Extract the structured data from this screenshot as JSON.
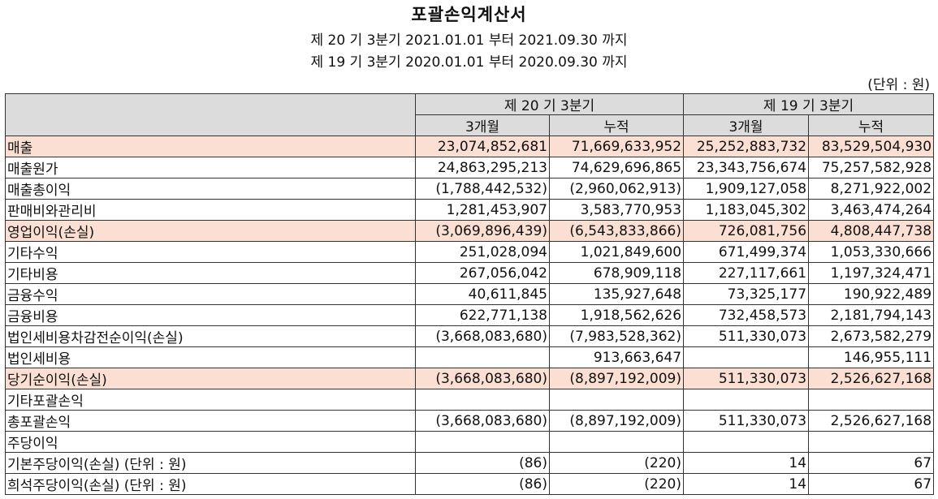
{
  "title": "포괄손익계산서",
  "period_current": "제 20 기 3분기 2021.01.01 부터 2021.09.30 까지",
  "period_prior": "제 19 기 3분기 2020.01.01 부터 2020.09.30 까지",
  "unit": "(단위 : 원)",
  "header": {
    "current_period": "제 20 기 3분기",
    "prior_period": "제 19 기 3분기",
    "col_3m": "3개월",
    "col_cum": "누적"
  },
  "rows": [
    {
      "label": "매출",
      "v": [
        "23,074,852,681",
        "71,669,633,952",
        "25,252,883,732",
        "83,529,504,930"
      ]
    },
    {
      "label": "매출원가",
      "v": [
        "24,863,295,213",
        "74,629,696,865",
        "23,343,756,674",
        "75,257,582,928"
      ]
    },
    {
      "label": "매출총이익",
      "v": [
        "(1,788,442,532)",
        "(2,960,062,913)",
        "1,909,127,058",
        "8,271,922,002"
      ]
    },
    {
      "label": "판매비와관리비",
      "v": [
        "1,281,453,907",
        "3,583,770,953",
        "1,183,045,302",
        "3,463,474,264"
      ]
    },
    {
      "label": "영업이익(손실)",
      "v": [
        "(3,069,896,439)",
        "(6,543,833,866)",
        "726,081,756",
        "4,808,447,738"
      ]
    },
    {
      "label": "기타수익",
      "v": [
        "251,028,094",
        "1,021,849,600",
        "671,499,374",
        "1,053,330,666"
      ]
    },
    {
      "label": "기타비용",
      "v": [
        "267,056,042",
        "678,909,118",
        "227,117,661",
        "1,197,324,471"
      ]
    },
    {
      "label": "금융수익",
      "v": [
        "40,611,845",
        "135,927,648",
        "73,325,177",
        "190,922,489"
      ]
    },
    {
      "label": "금융비용",
      "v": [
        "622,771,138",
        "1,918,562,626",
        "732,458,573",
        "2,181,794,143"
      ]
    },
    {
      "label": "법인세비용차감전순이익(손실)",
      "v": [
        "(3,668,083,680)",
        "(7,983,528,362)",
        "511,330,073",
        "2,673,582,279"
      ]
    },
    {
      "label": "법인세비용",
      "v": [
        "",
        "913,663,647",
        "",
        "146,955,111"
      ]
    },
    {
      "label": "당기순이익(손실)",
      "v": [
        "(3,668,083,680)",
        "(8,897,192,009)",
        "511,330,073",
        "2,526,627,168"
      ]
    },
    {
      "label": "기타포괄손익",
      "v": [
        "",
        "",
        "",
        ""
      ]
    },
    {
      "label": "총포괄손익",
      "v": [
        "(3,668,083,680)",
        "(8,897,192,009)",
        "511,330,073",
        "2,526,627,168"
      ]
    },
    {
      "label": "주당이익",
      "v": [
        "",
        "",
        "",
        ""
      ]
    },
    {
      "label": "기본주당이익(손실) (단위 : 원)",
      "v": [
        "(86)",
        "(220)",
        "14",
        "67"
      ]
    },
    {
      "label": "희석주당이익(손실) (단위 : 원)",
      "v": [
        "(86)",
        "(220)",
        "14",
        "67"
      ]
    }
  ]
}
